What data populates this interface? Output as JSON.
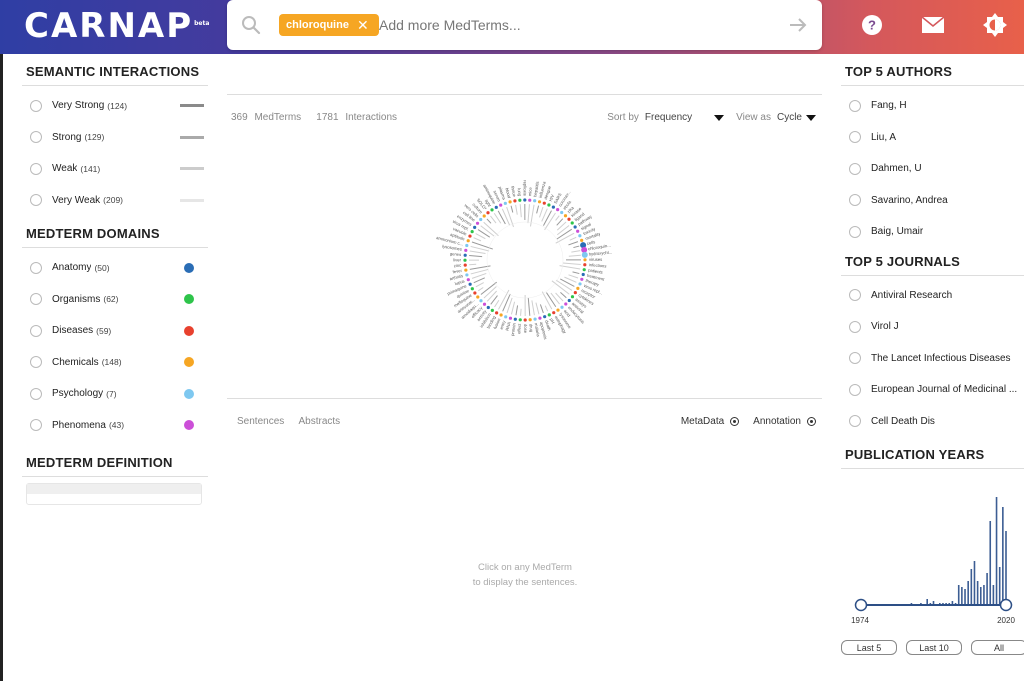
{
  "header": {
    "logo": "CARNAP",
    "logo_badge": "beta",
    "chip": "chloroquine",
    "search_placeholder": "Add more MedTerms..."
  },
  "semantic_interactions": {
    "title": "SEMANTIC INTERACTIONS",
    "items": [
      {
        "label": "Very Strong",
        "count": "(124)",
        "color": "#8a8a8a"
      },
      {
        "label": "Strong",
        "count": "(129)",
        "color": "#aaaaaa"
      },
      {
        "label": "Weak",
        "count": "(141)",
        "color": "#cccccc"
      },
      {
        "label": "Very Weak",
        "count": "(209)",
        "color": "#e6e6e6"
      }
    ]
  },
  "medterm_domains": {
    "title": "MEDTERM DOMAINS",
    "items": [
      {
        "label": "Anatomy",
        "count": "(50)",
        "color": "#2a6db5"
      },
      {
        "label": "Organisms",
        "count": "(62)",
        "color": "#2ec44a"
      },
      {
        "label": "Diseases",
        "count": "(59)",
        "color": "#e8412e"
      },
      {
        "label": "Chemicals",
        "count": "(148)",
        "color": "#f6a623"
      },
      {
        "label": "Psychology",
        "count": "(7)",
        "color": "#7ec8f0"
      },
      {
        "label": "Phenomena",
        "count": "(43)",
        "color": "#cc4fd8"
      }
    ]
  },
  "medterm_definition": {
    "title": "MEDTERM DEFINITION"
  },
  "center": {
    "medterms_count": "369",
    "medterms_label": "MedTerms",
    "interactions_count": "1781",
    "interactions_label": "Interactions",
    "sort_label": "Sort by",
    "sort_value": "Frequency",
    "view_label": "View as",
    "view_value": "Cycle",
    "tab_sentences": "Sentences",
    "tab_abstracts": "Abstracts",
    "toggle_metadata": "MetaData",
    "toggle_annotation": "Annotation",
    "hint_line1": "Click on any MedTerm",
    "hint_line2": "to display the sentences."
  },
  "top_authors": {
    "title": "TOP 5 AUTHORS",
    "items": [
      "Fang, H",
      "Liu, A",
      "Dahmen, U",
      "Savarino, Andrea",
      "Baig, Umair"
    ]
  },
  "top_journals": {
    "title": "TOP 5 JOURNALS",
    "items": [
      "Antiviral Research",
      "Virol J",
      "The Lancet Infectious Diseases",
      "European Journal of Medicinal ...",
      "Cell Death Dis"
    ]
  },
  "publication_years": {
    "title": "PUBLICATION YEARS",
    "start_year": "1974",
    "end_year": "2020",
    "buttons": [
      "Last 5",
      "Last 10",
      "All"
    ]
  },
  "chart_data": {
    "type": "bar",
    "x": [
      1990,
      1993,
      1995,
      1996,
      1997,
      1999,
      2000,
      2001,
      2002,
      2003,
      2004,
      2005,
      2006,
      2007,
      2008,
      2009,
      2010,
      2011,
      2012,
      2013,
      2014,
      2015,
      2016,
      2017,
      2018,
      2019,
      2020
    ],
    "values": [
      1,
      1,
      3,
      1,
      2,
      1,
      1,
      1,
      1,
      2,
      1,
      10,
      9,
      8,
      12,
      18,
      22,
      12,
      9,
      10,
      16,
      42,
      10,
      54,
      19,
      49,
      37
    ],
    "xlim": [
      1974,
      2020
    ]
  },
  "wheel_labels": [
    "cells",
    "chloroquin...",
    "hydroxychl...",
    "viruses",
    "infections",
    "patients",
    "treatment",
    "therapy",
    "virus repl...",
    "receptor",
    "cytokines",
    "assays",
    "antiviral",
    "endocytosis",
    "acid",
    "lysosome",
    "autophagy",
    "pH",
    "death",
    "apoptosis",
    "malaria",
    "drug",
    "dose",
    "effect",
    "protein",
    "RNA",
    "entry",
    "fusion",
    "binding",
    "inhibition",
    "activity",
    "efficacy",
    "amodiaqu...",
    "artesunat...",
    "mefloquine",
    "quinine",
    "primaquine",
    "lupus",
    "arthritis",
    "fever",
    "zinc",
    "liver",
    "genes",
    "lysosomes",
    "ammonium c...",
    "aptitude",
    "vacuole",
    "virus repl.",
    "enzymes",
    "cell line",
    "vero cells",
    "culture",
    "SOLO*",
    "light",
    "aminoquine",
    "serum",
    "plasma",
    "blood",
    "tissue",
    "lung",
    "replicate",
    "mice",
    "hepatitis",
    "influenza",
    "dengue",
    "HIV",
    "SARS",
    "coronav...",
    "ebola",
    "zika",
    "kinase",
    "ligand",
    "pathway",
    "signal",
    "toxicity",
    "mortality"
  ]
}
